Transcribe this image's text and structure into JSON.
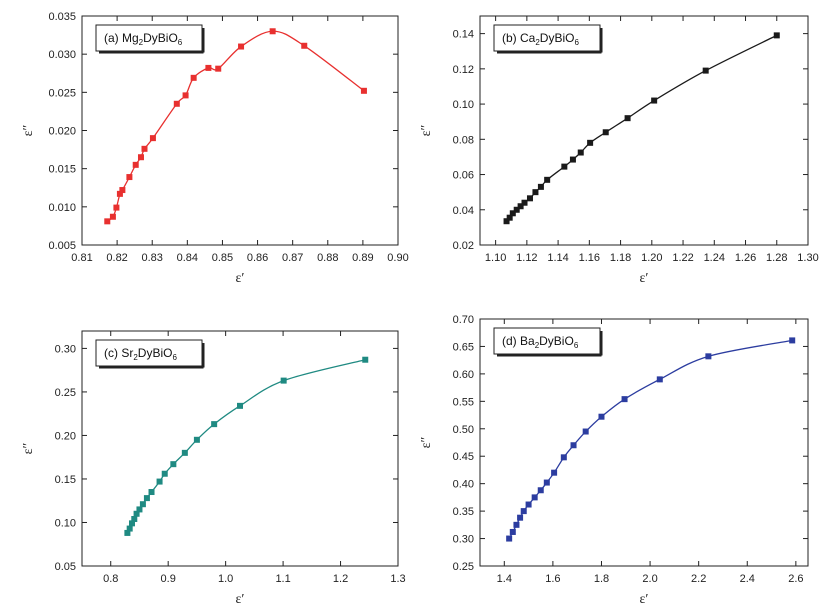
{
  "chart_data": [
    {
      "type": "scatter",
      "label": "(a)",
      "compound": {
        "parts": [
          "Mg",
          "2",
          "DyBiO",
          "6"
        ]
      },
      "xlabel": "ε′",
      "ylabel": "ε″",
      "xlim": [
        0.81,
        0.9
      ],
      "ylim": [
        0.005,
        0.035
      ],
      "xticks": [
        0.81,
        0.82,
        0.83,
        0.84,
        0.85,
        0.86,
        0.87,
        0.88,
        0.89,
        0.9
      ],
      "xtick_labels": [
        "0.81",
        "0.82",
        "0.83",
        "0.84",
        "0.85",
        "0.86",
        "0.87",
        "0.88",
        "0.89",
        "0.90"
      ],
      "yticks": [
        0.005,
        0.01,
        0.015,
        0.02,
        0.025,
        0.03,
        0.035
      ],
      "ytick_labels": [
        "0.005",
        "0.010",
        "0.015",
        "0.020",
        "0.025",
        "0.030",
        "0.035"
      ],
      "color": "#e8302f",
      "legend_position": "top-left",
      "fit": "spline",
      "x": [
        0.8172,
        0.8188,
        0.8198,
        0.8208,
        0.8215,
        0.8235,
        0.8253,
        0.8268,
        0.8278,
        0.8302,
        0.837,
        0.8395,
        0.8418,
        0.846,
        0.8488,
        0.8553,
        0.8643,
        0.8733,
        0.8903
      ],
      "y": [
        0.0081,
        0.0087,
        0.0099,
        0.0117,
        0.0122,
        0.0139,
        0.0155,
        0.0165,
        0.0176,
        0.019,
        0.0235,
        0.0246,
        0.0269,
        0.0282,
        0.0281,
        0.031,
        0.033,
        0.0311,
        0.0252
      ]
    },
    {
      "type": "scatter",
      "label": "(b)",
      "compound": {
        "parts": [
          "Ca",
          "2",
          "DyBiO",
          "6"
        ]
      },
      "xlabel": "ε′",
      "ylabel": "ε″",
      "xlim": [
        1.09,
        1.3
      ],
      "ylim": [
        0.02,
        0.15
      ],
      "xticks": [
        1.1,
        1.12,
        1.14,
        1.16,
        1.18,
        1.2,
        1.22,
        1.24,
        1.26,
        1.28,
        1.3
      ],
      "xtick_labels": [
        "1.10",
        "1.12",
        "1.14",
        "1.16",
        "1.18",
        "1.20",
        "1.22",
        "1.24",
        "1.26",
        "1.28",
        "1.30"
      ],
      "yticks": [
        0.02,
        0.04,
        0.06,
        0.08,
        0.1,
        0.12,
        0.14
      ],
      "ytick_labels": [
        "0.02",
        "0.04",
        "0.06",
        "0.08",
        "0.10",
        "0.12",
        "0.14"
      ],
      "color": "#1a1a1a",
      "legend_position": "top-left",
      "fit": "spline",
      "x": [
        1.107,
        1.109,
        1.111,
        1.1135,
        1.116,
        1.1185,
        1.122,
        1.1255,
        1.129,
        1.133,
        1.144,
        1.1495,
        1.1545,
        1.1605,
        1.1705,
        1.1845,
        1.2015,
        1.2345,
        1.28
      ],
      "y": [
        0.0335,
        0.0355,
        0.038,
        0.04,
        0.042,
        0.044,
        0.0465,
        0.05,
        0.053,
        0.057,
        0.0645,
        0.0685,
        0.0725,
        0.078,
        0.084,
        0.092,
        0.102,
        0.119,
        0.139
      ]
    },
    {
      "type": "scatter",
      "label": "(c)",
      "compound": {
        "parts": [
          "Sr",
          "2",
          "DyBiO",
          "6"
        ]
      },
      "xlabel": "ε′",
      "ylabel": "ε″",
      "xlim": [
        0.75,
        1.3
      ],
      "ylim": [
        0.05,
        0.32
      ],
      "xticks": [
        0.8,
        0.9,
        1.0,
        1.1,
        1.2,
        1.3
      ],
      "xtick_labels": [
        "0.8",
        "0.9",
        "1.0",
        "1.1",
        "1.2",
        "1.3"
      ],
      "yticks": [
        0.05,
        0.1,
        0.15,
        0.2,
        0.25,
        0.3
      ],
      "ytick_labels": [
        "0.05",
        "0.10",
        "0.15",
        "0.20",
        "0.25",
        "0.30"
      ],
      "color": "#1f8a82",
      "legend_position": "top-left",
      "fit": "spline",
      "x": [
        0.829,
        0.833,
        0.837,
        0.841,
        0.845,
        0.85,
        0.856,
        0.863,
        0.871,
        0.885,
        0.894,
        0.909,
        0.929,
        0.95,
        0.98,
        1.025,
        1.101,
        1.243
      ],
      "y": [
        0.088,
        0.093,
        0.099,
        0.104,
        0.11,
        0.115,
        0.121,
        0.128,
        0.135,
        0.147,
        0.156,
        0.167,
        0.18,
        0.195,
        0.213,
        0.234,
        0.263,
        0.287
      ]
    },
    {
      "type": "scatter",
      "label": "(d)",
      "compound": {
        "parts": [
          "Ba",
          "2",
          "DyBiO",
          "6"
        ]
      },
      "xlabel": "ε′",
      "ylabel": "ε″",
      "xlim": [
        1.3,
        2.65
      ],
      "ylim": [
        0.25,
        0.7
      ],
      "xticks": [
        1.4,
        1.6,
        1.8,
        2.0,
        2.2,
        2.4,
        2.6
      ],
      "xtick_labels": [
        "1.4",
        "1.6",
        "1.8",
        "2.0",
        "2.2",
        "2.4",
        "2.6"
      ],
      "yticks": [
        0.25,
        0.3,
        0.35,
        0.4,
        0.45,
        0.5,
        0.55,
        0.6,
        0.65,
        0.7
      ],
      "ytick_labels": [
        "0.25",
        "0.30",
        "0.35",
        "0.40",
        "0.45",
        "0.50",
        "0.55",
        "0.60",
        "0.65",
        "0.70"
      ],
      "color": "#2c3da0",
      "legend_position": "top-left",
      "fit": "spline",
      "x": [
        1.42,
        1.435,
        1.45,
        1.465,
        1.48,
        1.5,
        1.525,
        1.55,
        1.575,
        1.605,
        1.645,
        1.685,
        1.735,
        1.8,
        1.895,
        2.04,
        2.24,
        2.585
      ],
      "y": [
        0.3,
        0.312,
        0.325,
        0.338,
        0.35,
        0.362,
        0.375,
        0.388,
        0.402,
        0.42,
        0.448,
        0.47,
        0.495,
        0.522,
        0.554,
        0.59,
        0.632,
        0.661
      ]
    }
  ]
}
